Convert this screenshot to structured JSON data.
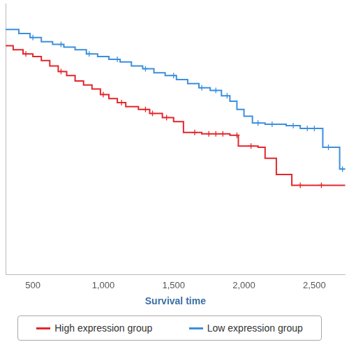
{
  "chart_data": {
    "type": "line",
    "x_label": "Survival time",
    "xlim": [
      306,
      2720
    ],
    "ylim": [
      0,
      1
    ],
    "xticks": [
      500,
      {
        "value": 1000,
        "label": "1,000"
      },
      {
        "value": 1500,
        "label": "1,500"
      },
      {
        "value": 2000,
        "label": "2,000"
      },
      {
        "value": 2500,
        "label": "2,500"
      }
    ],
    "tick_labels": "x",
    "grid": false,
    "line_style": "steps",
    "marker": "cross",
    "legend": "bottom",
    "series": [
      {
        "name": "High expression group",
        "color": "#e3262b",
        "x": [
          306,
          360,
          430,
          500,
          560,
          620,
          680,
          740,
          800,
          860,
          920,
          980,
          1040,
          1100,
          1160,
          1250,
          1330,
          1420,
          1500,
          1570,
          1700,
          1900,
          1960,
          2100,
          2150,
          2230,
          2340,
          2720
        ],
        "values": [
          0.845,
          0.83,
          0.815,
          0.805,
          0.79,
          0.77,
          0.75,
          0.735,
          0.715,
          0.7,
          0.685,
          0.665,
          0.65,
          0.635,
          0.62,
          0.61,
          0.595,
          0.58,
          0.565,
          0.525,
          0.52,
          0.515,
          0.475,
          0.47,
          0.43,
          0.37,
          0.33,
          0.33
        ],
        "censored": {
          "x": [
            450,
            700,
            1000,
            1130,
            1300,
            1350,
            1450,
            1650,
            1750,
            1800,
            1850,
            1950,
            2050,
            2400,
            2550
          ],
          "values": [
            0.815,
            0.75,
            0.665,
            0.635,
            0.61,
            0.595,
            0.58,
            0.525,
            0.52,
            0.52,
            0.52,
            0.515,
            0.475,
            0.33,
            0.33
          ]
        }
      },
      {
        "name": "Low expression group",
        "color": "#3b8fe0",
        "x": [
          306,
          400,
          480,
          560,
          640,
          720,
          800,
          880,
          960,
          1040,
          1120,
          1200,
          1280,
          1360,
          1440,
          1520,
          1600,
          1680,
          1760,
          1840,
          1900,
          1950,
          2000,
          2060,
          2150,
          2300,
          2400,
          2560,
          2680,
          2720
        ],
        "values": [
          0.905,
          0.89,
          0.875,
          0.86,
          0.85,
          0.84,
          0.83,
          0.815,
          0.805,
          0.795,
          0.785,
          0.77,
          0.76,
          0.745,
          0.735,
          0.72,
          0.705,
          0.69,
          0.68,
          0.66,
          0.64,
          0.61,
          0.585,
          0.56,
          0.555,
          0.55,
          0.54,
          0.47,
          0.39,
          0.39
        ],
        "censored": {
          "x": [
            500,
            700,
            900,
            1100,
            1300,
            1500,
            1700,
            1800,
            1880,
            2100,
            2200,
            2350,
            2450,
            2500,
            2600,
            2700
          ],
          "values": [
            0.875,
            0.85,
            0.815,
            0.795,
            0.76,
            0.735,
            0.69,
            0.68,
            0.66,
            0.56,
            0.555,
            0.55,
            0.54,
            0.54,
            0.47,
            0.39
          ]
        }
      }
    ]
  }
}
